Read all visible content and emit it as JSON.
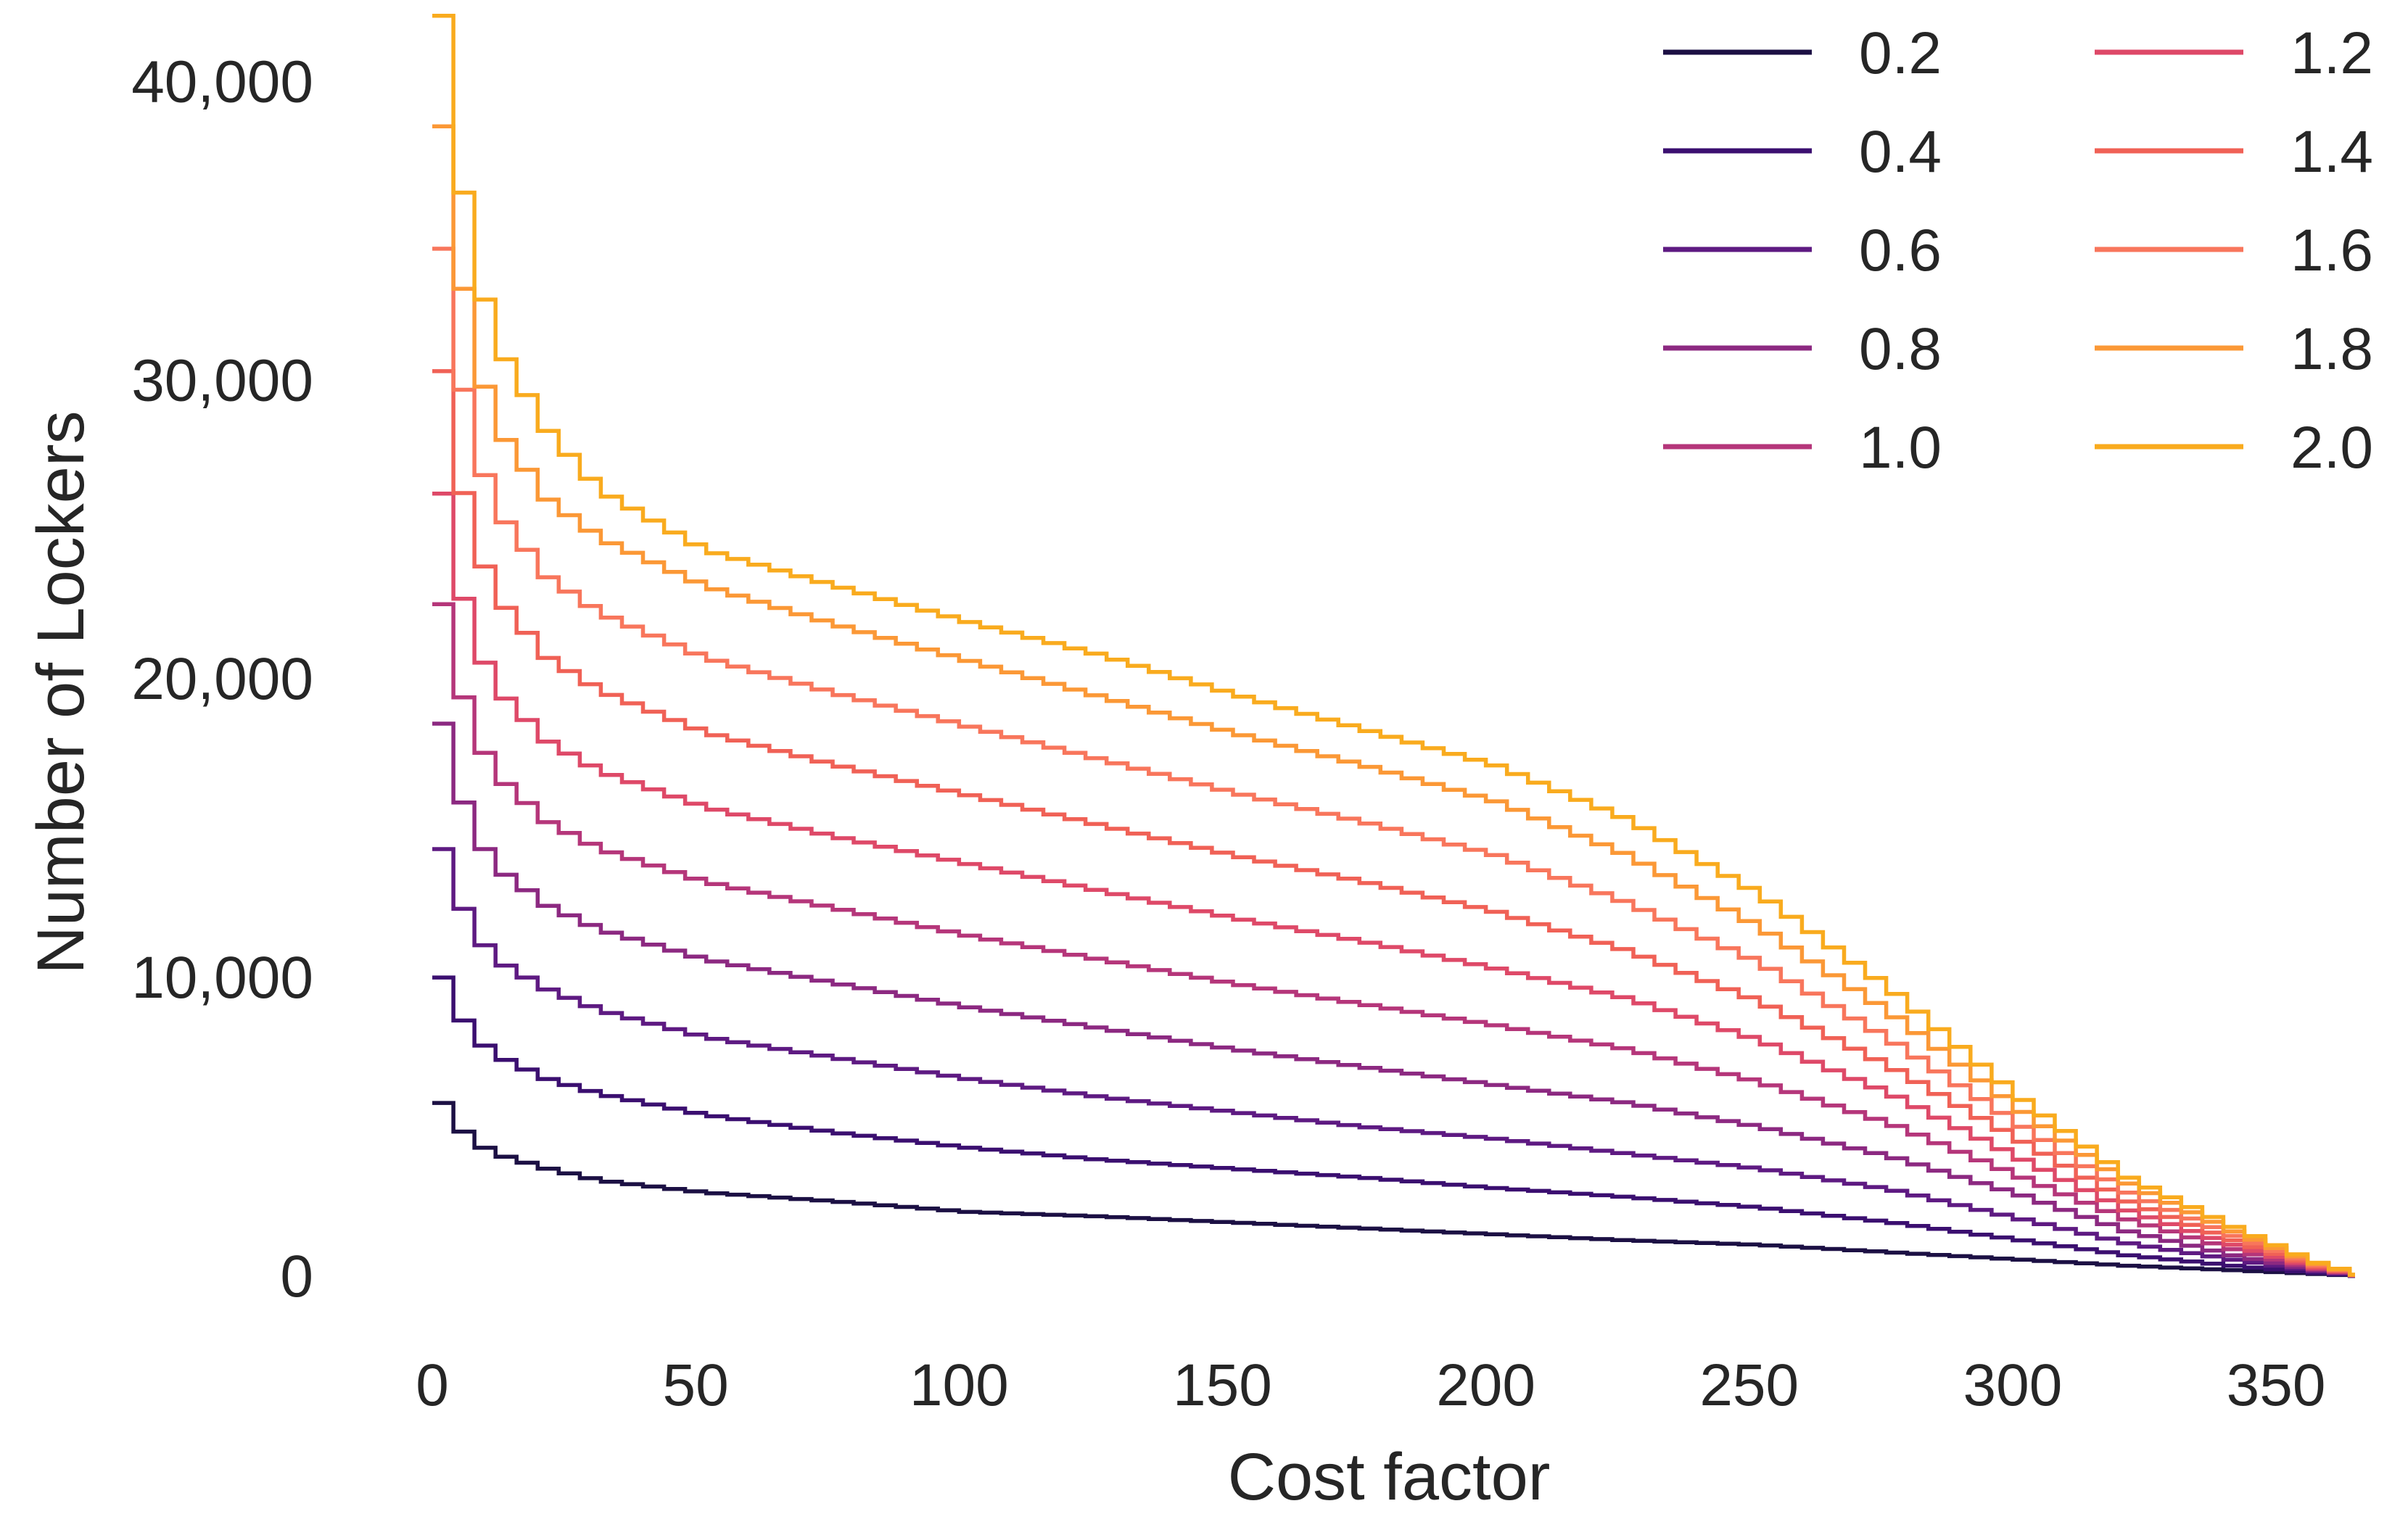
{
  "chart_data": {
    "type": "line",
    "title": "",
    "xlabel": "Cost factor",
    "ylabel": "Number of Lockers",
    "xlim": [
      0,
      365
    ],
    "ylim": [
      0,
      42000
    ],
    "x_ticks": [
      "0",
      "50",
      "100",
      "150",
      "200",
      "250",
      "300",
      "350"
    ],
    "y_ticks": [
      "0",
      "10,000",
      "20,000",
      "30,000",
      "40,000"
    ],
    "grid": false,
    "legend_title": "",
    "legend_position": "top-right",
    "legend_columns": 2,
    "x": [
      0,
      5,
      10,
      20,
      30,
      50,
      75,
      100,
      125,
      150,
      175,
      200,
      225,
      250,
      275,
      300,
      320,
      340,
      355,
      365
    ],
    "series": [
      {
        "name": "0.2",
        "color": "#1c1044",
        "values": [
          5800,
          4600,
          4100,
          3600,
          3200,
          2800,
          2500,
          2150,
          2000,
          1800,
          1600,
          1400,
          1200,
          1050,
          800,
          550,
          350,
          200,
          80,
          0
        ]
      },
      {
        "name": "0.4",
        "color": "#3b0f70",
        "values": [
          10000,
          8200,
          7400,
          6600,
          6100,
          5400,
          4800,
          4300,
          3900,
          3600,
          3300,
          2950,
          2650,
          2300,
          1800,
          1200,
          700,
          350,
          120,
          0
        ]
      },
      {
        "name": "0.6",
        "color": "#5e1a82",
        "values": [
          14300,
          11800,
          10600,
          9600,
          8900,
          8000,
          7300,
          6600,
          6000,
          5500,
          5000,
          4600,
          4100,
          3600,
          2900,
          1900,
          1100,
          550,
          180,
          0
        ]
      },
      {
        "name": "0.8",
        "color": "#8c2981",
        "values": [
          18500,
          15200,
          13700,
          12400,
          11600,
          10600,
          9800,
          9000,
          8300,
          7600,
          7000,
          6400,
          5800,
          5000,
          4000,
          2700,
          1500,
          700,
          220,
          0
        ]
      },
      {
        "name": "1.0",
        "color": "#b5367a",
        "values": [
          22500,
          18600,
          16800,
          15200,
          14300,
          13200,
          12300,
          11400,
          10600,
          9800,
          9100,
          8400,
          7600,
          6500,
          5100,
          3300,
          1900,
          900,
          260,
          0
        ]
      },
      {
        "name": "1.2",
        "color": "#de4968",
        "values": [
          26200,
          21800,
          19700,
          17900,
          16900,
          15700,
          14700,
          13800,
          12900,
          12000,
          11200,
          10300,
          9300,
          7900,
          6100,
          3900,
          2200,
          1050,
          300,
          0
        ]
      },
      {
        "name": "1.4",
        "color": "#f06156",
        "values": [
          30300,
          25200,
          22800,
          20700,
          19600,
          18200,
          17100,
          16100,
          15100,
          14100,
          13200,
          12200,
          10900,
          9200,
          7000,
          4500,
          2500,
          1200,
          350,
          0
        ]
      },
      {
        "name": "1.6",
        "color": "#f8765c",
        "values": [
          34400,
          28500,
          25700,
          23400,
          22200,
          20700,
          19500,
          18400,
          17300,
          16200,
          15200,
          14100,
          12500,
          10500,
          7900,
          5000,
          2800,
          1350,
          400,
          0
        ]
      },
      {
        "name": "1.8",
        "color": "#fb9836",
        "values": [
          38500,
          31700,
          28500,
          26000,
          24700,
          23100,
          21800,
          20600,
          19400,
          18200,
          17100,
          15900,
          14100,
          11700,
          8800,
          5500,
          3100,
          1500,
          450,
          0
        ]
      },
      {
        "name": "2.0",
        "color": "#f9ab1e",
        "values": [
          42200,
          34800,
          31300,
          28300,
          26300,
          24300,
          23100,
          21900,
          20800,
          19500,
          18300,
          17100,
          15300,
          12800,
          9600,
          5900,
          3300,
          1650,
          500,
          0
        ]
      }
    ]
  }
}
